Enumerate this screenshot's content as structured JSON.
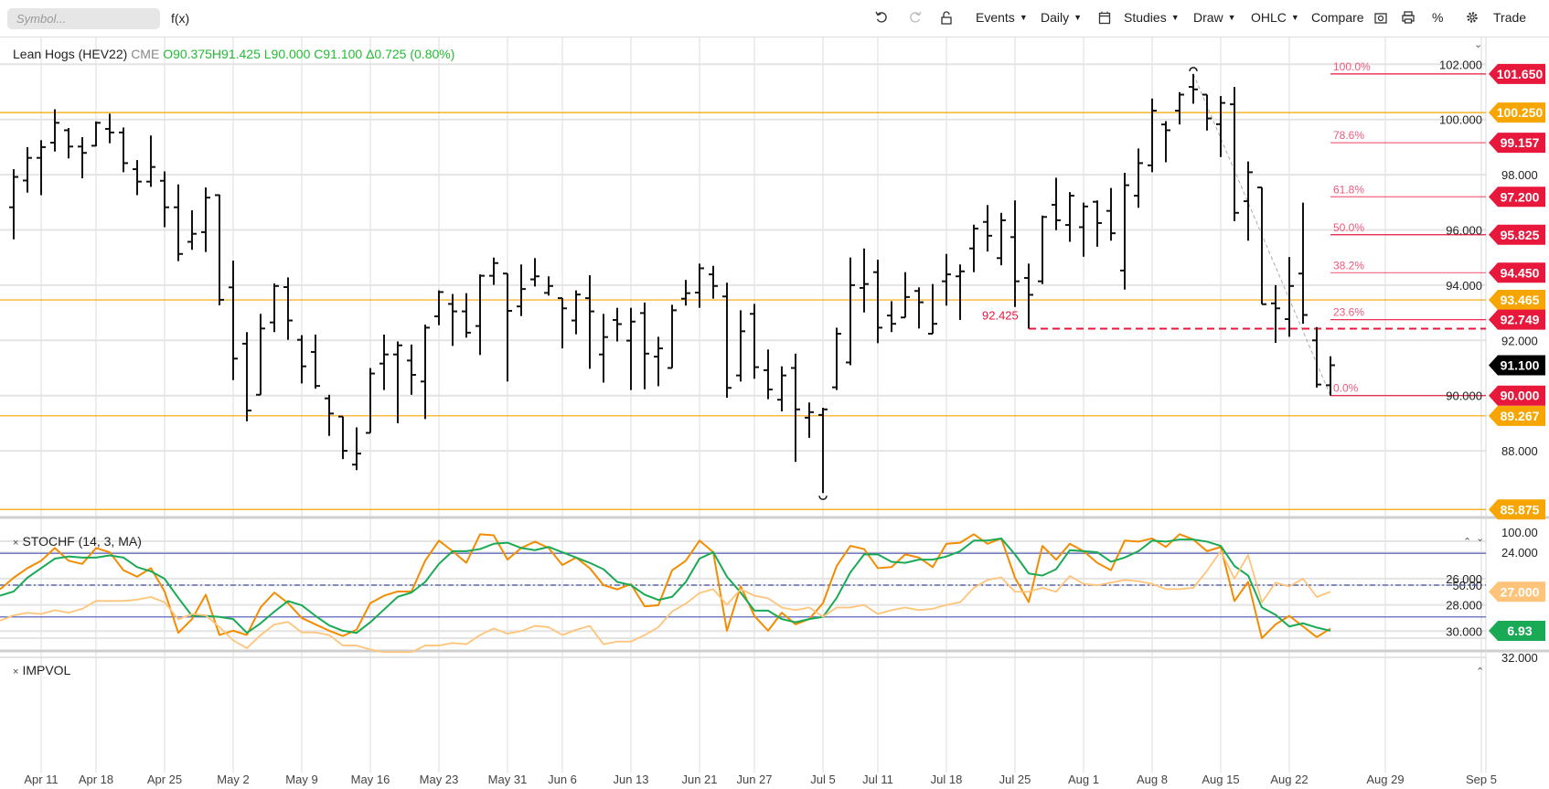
{
  "toolbar": {
    "symbol_placeholder": "Symbol...",
    "fx_label": "f(x)",
    "events": "Events",
    "daily": "Daily",
    "studies": "Studies",
    "draw": "Draw",
    "ohlc": "OHLC",
    "compare": "Compare",
    "percent": "%",
    "trade": "Trade"
  },
  "legend": {
    "name": "Lean Hogs (HEV22)",
    "exchange": "CME",
    "open": "O90.375",
    "high": "H91.425",
    "low": "L90.000",
    "close": "C91.100",
    "change": "Δ0.725 (0.80%)"
  },
  "studies": {
    "stoch_label": "STOCHF (14, 3, MA)",
    "impvol_label": "IMPVOL",
    "close_marker": "×"
  },
  "colors": {
    "bar": "#111111",
    "support": "#f7a500",
    "fib": "#e8173c",
    "fib_text": "#f4587a",
    "stoch_fast": "#f28c00",
    "stoch_slow": "#1aaa55",
    "impvol": "#ffc47a",
    "band": "#4a55b0"
  },
  "chart_data": [
    {
      "type": "ohlc",
      "title": "Lean Hogs (HEV22)",
      "ylim": [
        84.9,
        102.9
      ],
      "yticks": [
        "102.000",
        "100.000",
        "98.000",
        "96.000",
        "94.000",
        "92.000",
        "90.000",
        "88.000"
      ],
      "ytick_values": [
        102,
        100,
        98,
        96,
        94,
        92,
        90,
        88
      ],
      "x_labels": [
        {
          "label": "Apr 11",
          "bar": 3
        },
        {
          "label": "Apr 18",
          "bar": 7
        },
        {
          "label": "Apr 25",
          "bar": 12
        },
        {
          "label": "May 2",
          "bar": 17
        },
        {
          "label": "May 9",
          "bar": 22
        },
        {
          "label": "May 16",
          "bar": 27
        },
        {
          "label": "May 23",
          "bar": 32
        },
        {
          "label": "May 31",
          "bar": 37
        },
        {
          "label": "Jun 6",
          "bar": 41
        },
        {
          "label": "Jun 13",
          "bar": 46
        },
        {
          "label": "Jun 21",
          "bar": 51
        },
        {
          "label": "Jun 27",
          "bar": 55
        },
        {
          "label": "Jul 5",
          "bar": 60
        },
        {
          "label": "Jul 11",
          "bar": 64
        },
        {
          "label": "Jul 18",
          "bar": 69
        },
        {
          "label": "Jul 25",
          "bar": 74
        },
        {
          "label": "Aug 1",
          "bar": 79
        },
        {
          "label": "Aug 8",
          "bar": 84
        },
        {
          "label": "Aug 15",
          "bar": 89
        },
        {
          "label": "Aug 22",
          "bar": 94
        },
        {
          "label": "Aug 29",
          "bar": 101
        },
        {
          "label": "Sep 5",
          "bar": 108
        }
      ],
      "first_bar_index": 1,
      "bars_ohlc": [
        [
          96.82,
          98.2,
          95.66,
          97.92
        ],
        [
          97.79,
          99.0,
          97.35,
          98.61
        ],
        [
          98.61,
          99.25,
          97.26,
          99.0
        ],
        [
          99.16,
          100.37,
          98.84,
          99.88
        ],
        [
          99.61,
          99.69,
          98.59,
          99.02
        ],
        [
          99.02,
          99.36,
          97.87,
          98.79
        ],
        [
          99.05,
          99.93,
          99.03,
          99.88
        ],
        [
          99.66,
          100.21,
          99.14,
          99.53
        ],
        [
          99.53,
          99.71,
          98.09,
          98.42
        ],
        [
          98.2,
          98.53,
          97.26,
          97.75
        ],
        [
          97.75,
          99.42,
          97.56,
          98.28
        ],
        [
          97.78,
          98.12,
          96.1,
          96.82
        ],
        [
          96.82,
          97.65,
          94.87,
          95.13
        ],
        [
          95.57,
          96.71,
          95.28,
          95.86
        ],
        [
          95.92,
          97.54,
          95.2,
          97.17
        ],
        [
          97.26,
          97.28,
          93.27,
          93.47
        ],
        [
          93.92,
          94.89,
          90.56,
          91.34
        ],
        [
          91.88,
          92.3,
          89.07,
          89.46
        ],
        [
          90.03,
          92.96,
          90.03,
          92.43
        ],
        [
          92.65,
          94.06,
          92.3,
          93.97
        ],
        [
          93.93,
          94.28,
          92.02,
          92.72
        ],
        [
          92.02,
          92.19,
          90.44,
          91.06
        ],
        [
          91.58,
          92.21,
          90.25,
          90.35
        ],
        [
          89.9,
          90.03,
          88.54,
          89.35
        ],
        [
          89.24,
          89.24,
          87.7,
          88.0
        ],
        [
          87.5,
          88.85,
          87.3,
          87.9
        ],
        [
          88.65,
          91.0,
          88.65,
          90.8
        ],
        [
          91.16,
          92.21,
          90.2,
          91.49
        ],
        [
          91.49,
          91.96,
          89.0,
          91.82
        ],
        [
          91.27,
          91.85,
          90.03,
          90.75
        ],
        [
          90.51,
          92.57,
          89.15,
          92.46
        ],
        [
          92.87,
          93.81,
          92.55,
          93.75
        ],
        [
          93.32,
          93.68,
          91.8,
          93.05
        ],
        [
          93.05,
          93.71,
          92.1,
          92.28
        ],
        [
          92.52,
          94.39,
          91.47,
          94.34
        ],
        [
          94.34,
          95.0,
          94.01,
          94.8
        ],
        [
          94.42,
          94.42,
          90.51,
          93.07
        ],
        [
          93.23,
          94.75,
          92.88,
          93.86
        ],
        [
          94.21,
          94.98,
          93.95,
          94.32
        ],
        [
          93.72,
          94.32,
          93.62,
          93.97
        ],
        [
          93.53,
          93.53,
          91.71,
          93.16
        ],
        [
          92.72,
          93.81,
          92.22,
          93.66
        ],
        [
          93.53,
          94.36,
          90.97,
          93.05
        ],
        [
          91.49,
          92.96,
          90.47,
          92.12
        ],
        [
          92.74,
          93.18,
          91.96,
          92.59
        ],
        [
          91.99,
          93.18,
          90.2,
          92.68
        ],
        [
          92.99,
          93.37,
          90.23,
          91.52
        ],
        [
          91.41,
          92.13,
          90.34,
          91.71
        ],
        [
          91.0,
          93.29,
          91.0,
          93.09
        ],
        [
          93.51,
          94.19,
          93.26,
          93.71
        ],
        [
          93.73,
          94.78,
          93.18,
          94.61
        ],
        [
          94.39,
          94.7,
          93.51,
          93.97
        ],
        [
          93.59,
          94.09,
          89.92,
          90.28
        ],
        [
          90.73,
          93.09,
          90.51,
          92.33
        ],
        [
          92.96,
          93.32,
          90.61,
          91.03
        ],
        [
          90.92,
          91.67,
          89.87,
          90.22
        ],
        [
          89.85,
          91.06,
          89.43,
          90.73
        ],
        [
          91.0,
          91.52,
          87.6,
          89.5
        ],
        [
          89.2,
          89.75,
          88.47,
          89.4
        ],
        [
          89.3,
          89.56,
          86.47,
          89.5
        ],
        [
          90.3,
          92.46,
          90.2,
          92.24
        ],
        [
          91.2,
          95.0,
          91.1,
          94.0
        ],
        [
          93.9,
          95.33,
          93.01,
          94.04
        ],
        [
          94.47,
          94.92,
          91.9,
          92.46
        ],
        [
          92.9,
          93.42,
          92.3,
          92.6
        ],
        [
          92.83,
          94.47,
          92.83,
          93.57
        ],
        [
          93.79,
          93.92,
          92.43,
          93.38
        ],
        [
          92.24,
          94.04,
          92.24,
          92.6
        ],
        [
          94.14,
          95.13,
          93.26,
          94.39
        ],
        [
          94.32,
          94.75,
          92.74,
          94.5
        ],
        [
          95.33,
          96.19,
          94.47,
          96.05
        ],
        [
          96.29,
          96.9,
          95.22,
          95.79
        ],
        [
          94.98,
          96.62,
          94.72,
          96.35
        ],
        [
          95.74,
          97.07,
          93.21,
          94.14
        ],
        [
          94.26,
          94.78,
          92.425,
          93.65
        ],
        [
          94.14,
          96.52,
          94.04,
          96.47
        ],
        [
          96.91,
          97.89,
          95.99,
          96.35
        ],
        [
          96.18,
          97.37,
          95.57,
          97.24
        ],
        [
          96.1,
          96.99,
          95.03,
          96.85
        ],
        [
          97.02,
          97.07,
          95.39,
          96.25
        ],
        [
          96.69,
          97.52,
          95.61,
          95.88
        ],
        [
          94.53,
          98.07,
          93.84,
          97.62
        ],
        [
          97.24,
          98.95,
          96.8,
          98.42
        ],
        [
          98.34,
          100.76,
          98.09,
          100.32
        ],
        [
          99.82,
          99.94,
          98.45,
          99.61
        ],
        [
          100.32,
          100.99,
          99.82,
          100.9
        ],
        [
          101.18,
          101.65,
          100.57,
          101.09
        ],
        [
          100.9,
          100.9,
          99.6,
          100.04
        ],
        [
          99.83,
          100.85,
          98.64,
          100.6
        ],
        [
          100.55,
          101.18,
          96.32,
          96.62
        ],
        [
          97.04,
          98.48,
          95.61,
          98.09
        ],
        [
          97.54,
          97.54,
          93.31,
          93.31
        ],
        [
          93.34,
          94.0,
          91.91,
          93.16
        ],
        [
          92.77,
          95.02,
          92.13,
          93.97
        ],
        [
          94.42,
          96.99,
          92.6,
          92.92
        ],
        [
          92.0,
          92.48,
          90.29,
          90.4
        ],
        [
          90.375,
          91.425,
          90.0,
          91.1
        ]
      ],
      "support_lines": [
        100.25,
        93.465,
        89.267,
        85.875
      ],
      "support_labels": [
        "100.250",
        "93.465",
        "89.267",
        "85.875"
      ],
      "fibonacci": {
        "from_bar": 87,
        "to_bar": 97,
        "levels": [
          {
            "pct": "100.0%",
            "price": 101.65,
            "label": "101.650"
          },
          {
            "pct": "78.6%",
            "price": 99.157,
            "label": "99.157"
          },
          {
            "pct": "61.8%",
            "price": 97.2,
            "label": "97.200"
          },
          {
            "pct": "50.0%",
            "price": 95.825,
            "label": "95.825"
          },
          {
            "pct": "38.2%",
            "price": 94.45,
            "label": "94.450"
          },
          {
            "pct": "23.6%",
            "price": 92.749,
            "label": "92.749"
          },
          {
            "pct": "0.0%",
            "price": 90.0,
            "label": "90.000"
          }
        ]
      },
      "dashed_level": {
        "price": 92.425,
        "label": "92.425",
        "from_bar": 75
      },
      "last_price": {
        "price": 91.1,
        "label": "91.100"
      },
      "markers": [
        {
          "bar": 60,
          "type": "low"
        },
        {
          "bar": 87,
          "type": "high"
        }
      ]
    },
    {
      "type": "line",
      "title": "STOCHF (14, 3, MA)",
      "ylim": [
        0,
        100
      ],
      "yticks": [
        "100.00",
        "50.00"
      ],
      "ytick_values": [
        100,
        50
      ],
      "bands": [
        80,
        50,
        20
      ],
      "first_index": 0,
      "series": [
        {
          "name": "fast",
          "values": [
            46,
            57,
            66,
            73,
            85,
            73,
            70,
            85,
            81,
            64,
            58,
            66,
            44,
            5,
            18,
            41,
            3,
            7,
            3,
            29,
            43,
            33,
            19,
            13,
            7,
            2,
            8,
            33,
            40,
            44,
            44,
            73,
            92,
            82,
            71,
            98,
            97,
            74,
            85,
            91,
            85,
            69,
            76,
            66,
            50,
            46,
            51,
            30,
            31,
            64,
            73,
            92,
            81,
            7,
            49,
            21,
            7,
            24,
            13,
            18,
            33,
            68,
            87,
            84,
            66,
            67,
            79,
            76,
            67,
            89,
            90,
            98,
            89,
            94,
            57,
            34,
            87,
            74,
            89,
            82,
            71,
            64,
            92,
            91,
            94,
            86,
            98,
            93,
            82,
            86,
            35,
            53,
            0,
            13,
            21,
            11,
            1,
            9
          ]
        },
        {
          "name": "slow",
          "values": [
            40,
            44,
            57,
            66,
            75,
            77,
            76,
            76,
            78,
            76,
            67,
            63,
            56,
            38,
            21,
            21,
            20,
            18,
            5,
            14,
            25,
            35,
            31,
            21,
            12,
            7,
            5,
            15,
            27,
            39,
            43,
            53,
            70,
            82,
            82,
            84,
            89,
            90,
            85,
            83,
            86,
            81,
            76,
            71,
            65,
            53,
            50,
            41,
            36,
            39,
            53,
            75,
            81,
            58,
            43,
            26,
            26,
            18,
            15,
            18,
            20,
            38,
            62,
            79,
            79,
            72,
            71,
            74,
            74,
            77,
            82,
            92,
            92,
            94,
            79,
            61,
            59,
            65,
            83,
            82,
            81,
            72,
            76,
            82,
            92,
            91,
            93,
            93,
            91,
            87,
            68,
            59,
            29,
            22,
            11,
            14,
            10,
            6.93
          ]
        }
      ],
      "last_label": "6.93"
    },
    {
      "type": "line",
      "title": "IMPVOL",
      "ylim": [
        23.2,
        32.8
      ],
      "yticks": [
        "32.000",
        "30.000",
        "28.000",
        "26.000",
        "24.000"
      ],
      "ytick_values": [
        32,
        30,
        28,
        26,
        24
      ],
      "first_index": 0,
      "values": [
        29.2,
        28.8,
        28.6,
        28.7,
        28.4,
        28.6,
        28.3,
        27.7,
        27.7,
        27.7,
        27.6,
        27.4,
        27.8,
        29.1,
        28.7,
        28.8,
        29.7,
        30.7,
        31.3,
        30.3,
        29.5,
        29.3,
        30.1,
        30.1,
        30.3,
        31.1,
        31.1,
        31.4,
        31.6,
        31.6,
        31.6,
        31.1,
        31.1,
        30.9,
        31.0,
        30.3,
        29.8,
        30.2,
        30.0,
        29.6,
        29.7,
        30.3,
        29.9,
        29.6,
        31.0,
        30.8,
        30.8,
        30.3,
        29.7,
        28.5,
        27.9,
        27.1,
        26.8,
        28.0,
        26.8,
        27.3,
        27.5,
        28.2,
        28.4,
        28.2,
        28.9,
        28.2,
        28.2,
        28.0,
        28.7,
        28.4,
        28.2,
        28.4,
        28.3,
        28.0,
        27.8,
        26.7,
        26.1,
        25.9,
        27.0,
        27.0,
        26.7,
        27.0,
        25.8,
        26.4,
        26.5,
        26.3,
        26.1,
        26.2,
        26.4,
        26.8,
        26.8,
        26.7,
        25.4,
        23.9,
        26.0,
        24.2,
        27.8,
        26.3,
        26.6,
        26.0,
        27.4,
        27.0
      ],
      "last_label": "27.000"
    }
  ]
}
